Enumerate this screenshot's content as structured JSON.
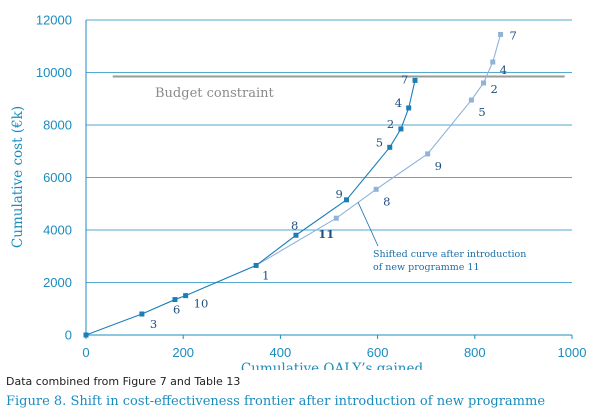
{
  "chart_data": {
    "type": "line",
    "xlabel": "Cumulative QALY’s gained",
    "ylabel": "Cumulative cost (€k)",
    "xlim": [
      0,
      1000
    ],
    "ylim": [
      0,
      12000
    ],
    "xticks": [
      0,
      200,
      400,
      600,
      800,
      1000
    ],
    "yticks": [
      0,
      2000,
      4000,
      6000,
      8000,
      10000,
      12000
    ],
    "grid": "horizontal",
    "budget_constraint": {
      "label": "Budget constraint",
      "value": 9850,
      "x_range": [
        55,
        985
      ]
    },
    "series": [
      {
        "style": "original",
        "color": "#1a7fb8",
        "points": [
          {
            "x": 0,
            "y": 0,
            "label": ""
          },
          {
            "x": 115,
            "y": 800,
            "label": "3"
          },
          {
            "x": 183,
            "y": 1350,
            "label": "6"
          },
          {
            "x": 205,
            "y": 1500,
            "label": "10"
          },
          {
            "x": 350,
            "y": 2650,
            "label": "1"
          },
          {
            "x": 432,
            "y": 3800,
            "label": "8"
          },
          {
            "x": 536,
            "y": 5150,
            "label": "9"
          },
          {
            "x": 625,
            "y": 7150,
            "label": "5"
          },
          {
            "x": 648,
            "y": 7850,
            "label": "2"
          },
          {
            "x": 664,
            "y": 8650,
            "label": "4"
          },
          {
            "x": 677,
            "y": 9700,
            "label": "7"
          }
        ]
      },
      {
        "style": "shifted",
        "color": "#8fb3d9",
        "points": [
          {
            "x": 350,
            "y": 2650,
            "label": ""
          },
          {
            "x": 515,
            "y": 4450,
            "label": "11"
          },
          {
            "x": 597,
            "y": 5550,
            "label": "8"
          },
          {
            "x": 703,
            "y": 6900,
            "label": "9"
          },
          {
            "x": 793,
            "y": 8950,
            "label": "5"
          },
          {
            "x": 818,
            "y": 9600,
            "label": "2"
          },
          {
            "x": 837,
            "y": 10400,
            "label": "4"
          },
          {
            "x": 853,
            "y": 11450,
            "label": "7"
          }
        ]
      }
    ],
    "annotation": {
      "lines": [
        "Shifted curve after introduction",
        "of new programme 11"
      ],
      "target": {
        "x": 560,
        "y": 5050
      }
    }
  },
  "note": "Data combined from Figure 7 and Table 13",
  "caption": "Figure 8. Shift in cost-effectiveness frontier after introduction of new programme"
}
